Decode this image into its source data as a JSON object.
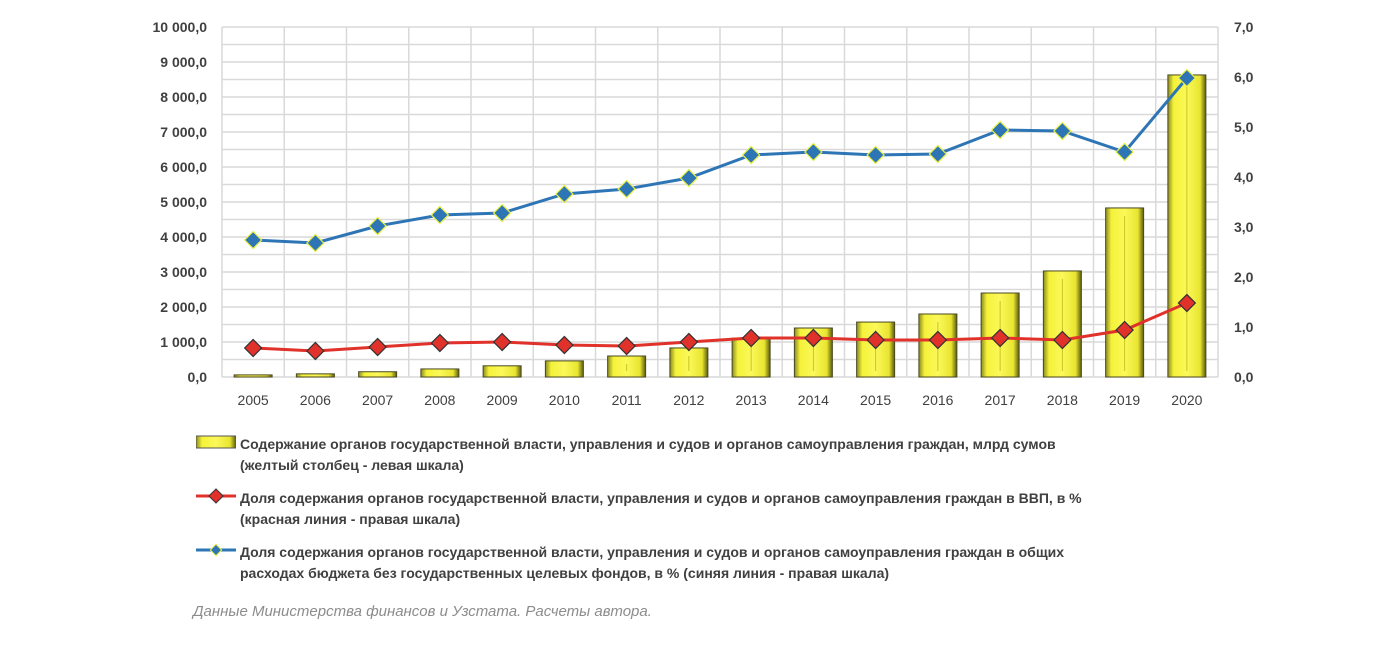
{
  "chart_data": {
    "type": "bar+line",
    "categories": [
      "2005",
      "2006",
      "2007",
      "2008",
      "2009",
      "2010",
      "2011",
      "2012",
      "2013",
      "2014",
      "2015",
      "2016",
      "2017",
      "2018",
      "2019",
      "2020"
    ],
    "left_axis": {
      "ylim": [
        0,
        10000
      ],
      "ticks": [
        "0,0",
        "1 000,0",
        "2 000,0",
        "3 000,0",
        "4 000,0",
        "5 000,0",
        "6 000,0",
        "7 000,0",
        "8 000,0",
        "9 000,0",
        "10 000,0"
      ]
    },
    "right_axis": {
      "ylim": [
        0,
        7
      ],
      "ticks": [
        "0,0",
        "1,0",
        "2,0",
        "3,0",
        "4,0",
        "5,0",
        "6,0",
        "7,0"
      ]
    },
    "grid": true,
    "series": [
      {
        "name": "Содержание органов государственной власти, управления и судов и органов самоуправления граждан, млрд сумов",
        "name_line2": "(желтый столбец - левая шкала)",
        "type": "bar",
        "axis": "left",
        "color": "#f2ef3a",
        "values": [
          60,
          90,
          150,
          230,
          320,
          460,
          600,
          830,
          1110,
          1400,
          1570,
          1800,
          2400,
          3030,
          4830,
          8630
        ]
      },
      {
        "name": "Доля содержания органов государственной власти, управления и судов и органов самоуправления граждан в ВВП, в %",
        "name_line2": "(красная линия - правая шкала)",
        "type": "line",
        "axis": "right",
        "color": "#e0312a",
        "values": [
          0.58,
          0.52,
          0.6,
          0.68,
          0.7,
          0.64,
          0.62,
          0.7,
          0.78,
          0.78,
          0.74,
          0.74,
          0.78,
          0.74,
          0.94,
          1.48
        ]
      },
      {
        "name": "Доля содержания органов государственной власти, управления и судов и органов самоуправления граждан в общих",
        "name_line2": "расходах бюджета без государственных целевых фондов, в % (синяя линия - правая шкала)",
        "type": "line",
        "axis": "right",
        "color": "#2e75b6",
        "values": [
          2.74,
          2.68,
          3.02,
          3.24,
          3.28,
          3.66,
          3.76,
          3.98,
          4.44,
          4.5,
          4.44,
          4.46,
          4.94,
          4.92,
          4.5,
          5.98
        ]
      }
    ],
    "legend_placement": "bottom"
  },
  "caption": "Данные Министерства финансов и Узстата. Расчеты автора."
}
